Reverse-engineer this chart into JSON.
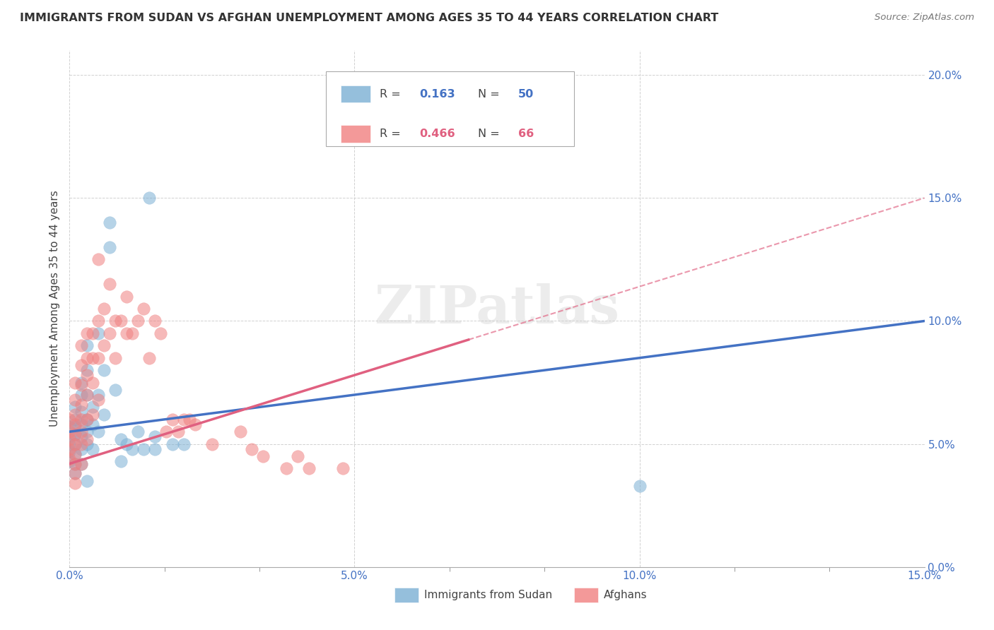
{
  "title": "IMMIGRANTS FROM SUDAN VS AFGHAN UNEMPLOYMENT AMONG AGES 35 TO 44 YEARS CORRELATION CHART",
  "source": "Source: ZipAtlas.com",
  "ylabel": "Unemployment Among Ages 35 to 44 years",
  "legend_label1": "Immigrants from Sudan",
  "legend_label2": "Afghans",
  "xlim": [
    0.0,
    0.15
  ],
  "ylim": [
    0.0,
    0.21
  ],
  "color_blue": "#7BAFD4",
  "color_pink": "#F08080",
  "color_blue_line": "#4472C4",
  "color_pink_line": "#E06080",
  "watermark": "ZIPatlas",
  "sudan_x": [
    0.0,
    0.0,
    0.0,
    0.0,
    0.0,
    0.001,
    0.001,
    0.001,
    0.001,
    0.001,
    0.001,
    0.001,
    0.001,
    0.002,
    0.002,
    0.002,
    0.002,
    0.002,
    0.002,
    0.002,
    0.003,
    0.003,
    0.003,
    0.003,
    0.003,
    0.003,
    0.003,
    0.004,
    0.004,
    0.004,
    0.005,
    0.005,
    0.005,
    0.006,
    0.006,
    0.007,
    0.007,
    0.008,
    0.009,
    0.009,
    0.01,
    0.011,
    0.012,
    0.013,
    0.014,
    0.015,
    0.015,
    0.018,
    0.02,
    0.1
  ],
  "sudan_y": [
    0.057,
    0.053,
    0.05,
    0.047,
    0.043,
    0.065,
    0.06,
    0.057,
    0.054,
    0.05,
    0.046,
    0.042,
    0.038,
    0.075,
    0.07,
    0.063,
    0.058,
    0.053,
    0.048,
    0.042,
    0.09,
    0.08,
    0.07,
    0.06,
    0.055,
    0.05,
    0.035,
    0.065,
    0.058,
    0.048,
    0.095,
    0.07,
    0.055,
    0.08,
    0.062,
    0.14,
    0.13,
    0.072,
    0.052,
    0.043,
    0.05,
    0.048,
    0.055,
    0.048,
    0.15,
    0.053,
    0.048,
    0.05,
    0.05,
    0.033
  ],
  "afghan_x": [
    0.0,
    0.0,
    0.0,
    0.0,
    0.0,
    0.001,
    0.001,
    0.001,
    0.001,
    0.001,
    0.001,
    0.001,
    0.001,
    0.001,
    0.001,
    0.002,
    0.002,
    0.002,
    0.002,
    0.002,
    0.002,
    0.002,
    0.002,
    0.003,
    0.003,
    0.003,
    0.003,
    0.003,
    0.003,
    0.004,
    0.004,
    0.004,
    0.004,
    0.005,
    0.005,
    0.005,
    0.005,
    0.006,
    0.006,
    0.007,
    0.007,
    0.008,
    0.008,
    0.009,
    0.01,
    0.01,
    0.011,
    0.012,
    0.013,
    0.014,
    0.015,
    0.016,
    0.017,
    0.018,
    0.019,
    0.02,
    0.021,
    0.022,
    0.025,
    0.03,
    0.032,
    0.034,
    0.038,
    0.04,
    0.042,
    0.048
  ],
  "afghan_y": [
    0.06,
    0.055,
    0.052,
    0.048,
    0.044,
    0.075,
    0.068,
    0.062,
    0.058,
    0.054,
    0.05,
    0.046,
    0.042,
    0.038,
    0.034,
    0.09,
    0.082,
    0.074,
    0.066,
    0.06,
    0.055,
    0.05,
    0.042,
    0.095,
    0.085,
    0.078,
    0.07,
    0.06,
    0.052,
    0.095,
    0.085,
    0.075,
    0.062,
    0.125,
    0.1,
    0.085,
    0.068,
    0.105,
    0.09,
    0.115,
    0.095,
    0.1,
    0.085,
    0.1,
    0.11,
    0.095,
    0.095,
    0.1,
    0.105,
    0.085,
    0.1,
    0.095,
    0.055,
    0.06,
    0.055,
    0.06,
    0.06,
    0.058,
    0.05,
    0.055,
    0.048,
    0.045,
    0.04,
    0.045,
    0.04,
    0.04
  ]
}
